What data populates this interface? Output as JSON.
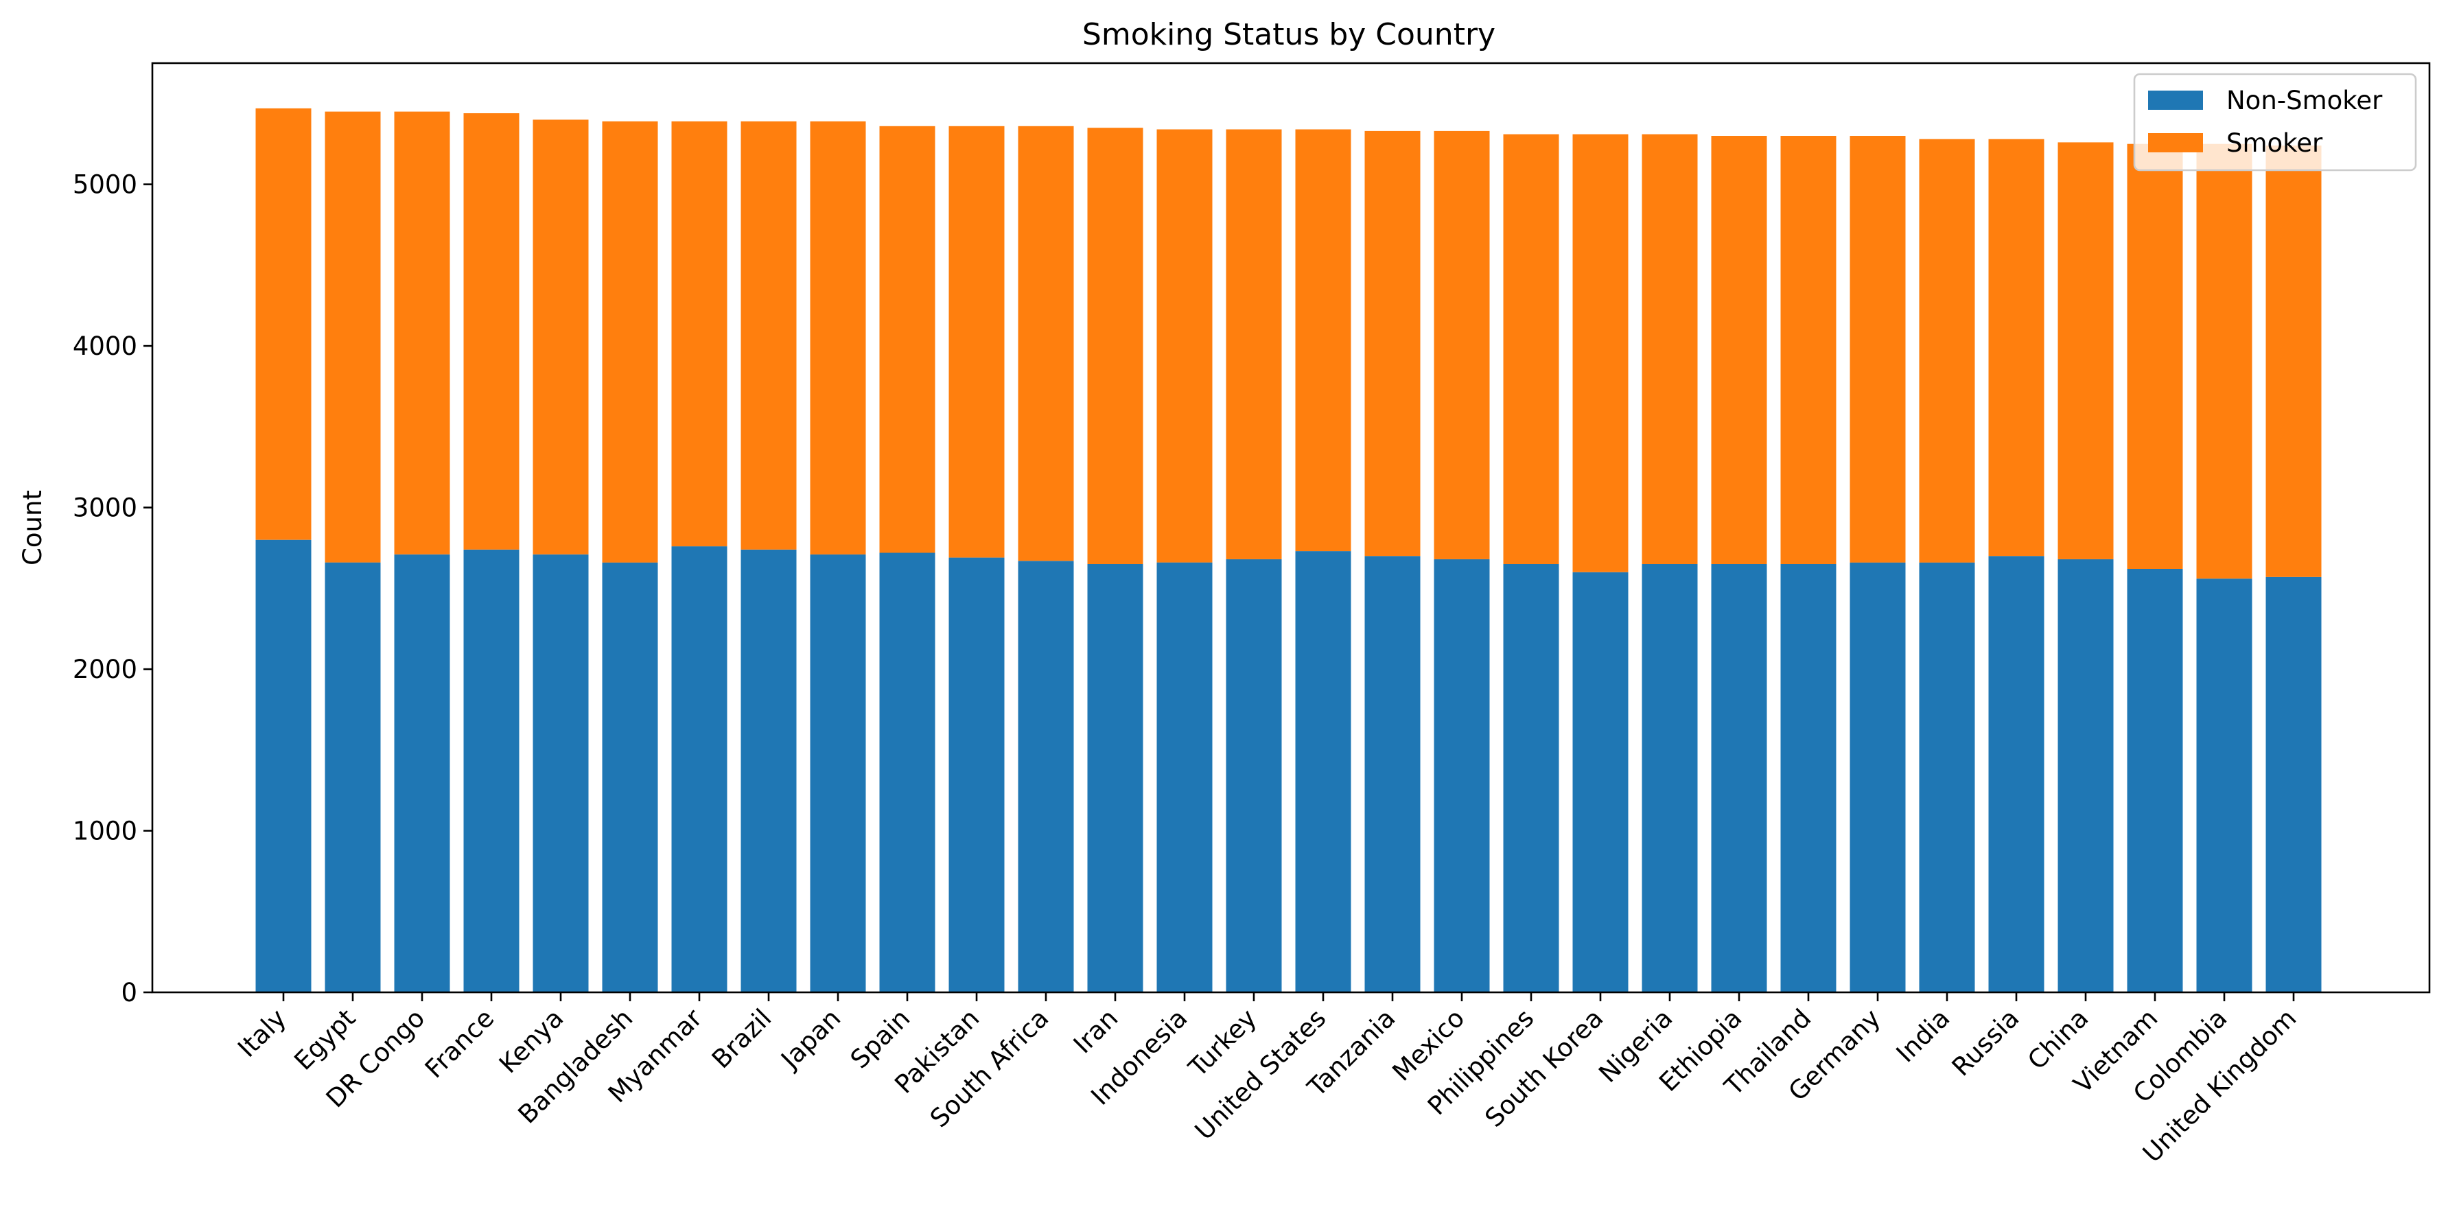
{
  "chart_data": {
    "type": "bar",
    "stacked": true,
    "title": "Smoking Status by Country",
    "xlabel": "",
    "ylabel": "Count",
    "ylim": [
      0,
      5750
    ],
    "yticks": [
      0,
      1000,
      2000,
      3000,
      4000,
      5000
    ],
    "grid": false,
    "legend_position": "top-right",
    "categories": [
      "Italy",
      "Egypt",
      "DR Congo",
      "France",
      "Kenya",
      "Bangladesh",
      "Myanmar",
      "Brazil",
      "Japan",
      "Spain",
      "Pakistan",
      "South Africa",
      "Iran",
      "Indonesia",
      "Turkey",
      "United States",
      "Tanzania",
      "Mexico",
      "Philippines",
      "South Korea",
      "Nigeria",
      "Ethiopia",
      "Thailand",
      "Germany",
      "India",
      "Russia",
      "China",
      "Vietnam",
      "Colombia",
      "United Kingdom"
    ],
    "series": [
      {
        "name": "Non-Smoker",
        "color": "#1f77b4",
        "values": [
          2800,
          2660,
          2710,
          2740,
          2710,
          2660,
          2760,
          2740,
          2710,
          2720,
          2690,
          2670,
          2650,
          2660,
          2680,
          2730,
          2700,
          2680,
          2650,
          2600,
          2650,
          2650,
          2650,
          2660,
          2660,
          2700,
          2680,
          2620,
          2560,
          2570
        ]
      },
      {
        "name": "Smoker",
        "color": "#ff7f0e",
        "values": [
          2670,
          2790,
          2740,
          2700,
          2690,
          2730,
          2630,
          2650,
          2680,
          2640,
          2670,
          2690,
          2700,
          2680,
          2660,
          2610,
          2630,
          2650,
          2660,
          2710,
          2660,
          2650,
          2650,
          2640,
          2620,
          2580,
          2580,
          2630,
          2690,
          2670
        ]
      }
    ]
  }
}
